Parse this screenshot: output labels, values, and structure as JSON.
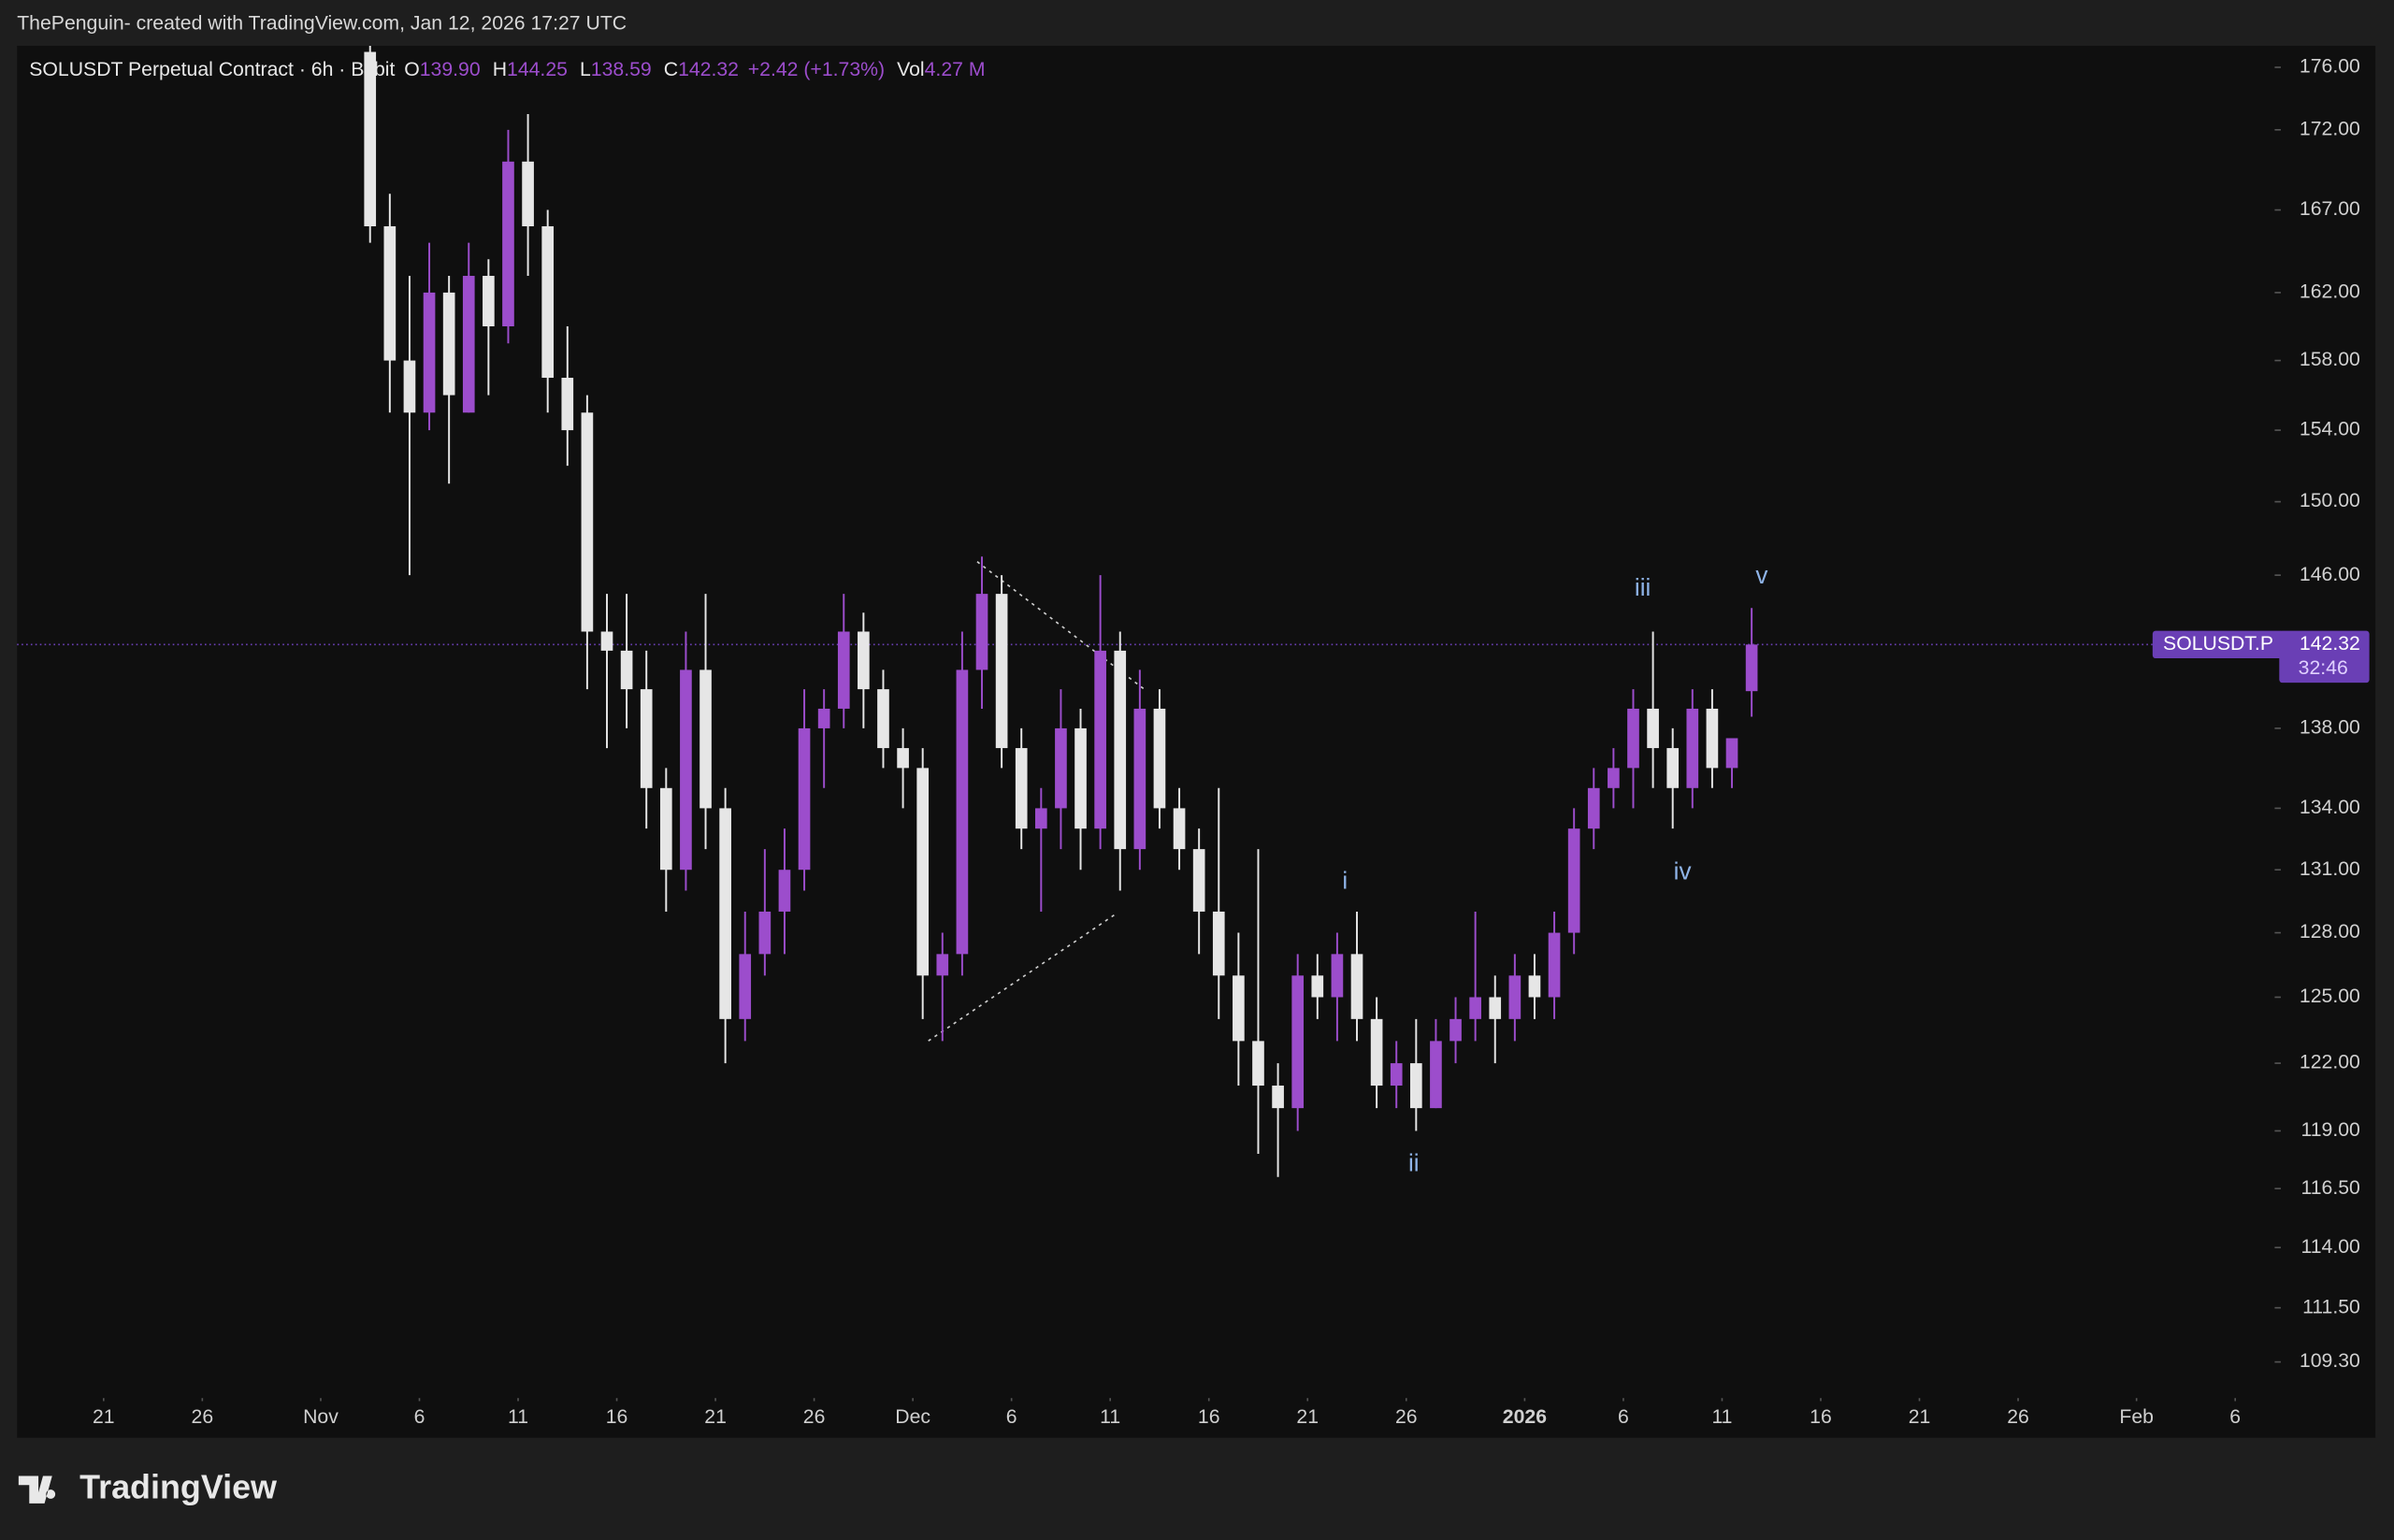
{
  "header": {
    "credit": "ThePenguin- created with TradingView.com, Jan 12, 2026 17:27 UTC",
    "brand": "TradingView"
  },
  "chart_data": {
    "type": "candlestick",
    "title": "SOLUSDT Perpetual Contract · 6h · Bybit",
    "legend": {
      "o": "O",
      "open": "139.90",
      "h": "H",
      "high": "144.25",
      "l": "L",
      "low": "138.59",
      "c": "C",
      "close": "142.32",
      "change": "+2.42 (+1.73%)",
      "vol": "Vol",
      "volume": "4.27 M"
    },
    "log_scale": true,
    "up_color": "#9c4dcc",
    "down_color": "#e6e6e6",
    "x": [
      "Nov 3",
      "Nov 4",
      "Nov 5",
      "Nov 6",
      "Nov 7",
      "Nov 8",
      "Nov 9",
      "Nov 10",
      "Nov 11",
      "Nov 12",
      "Nov 13",
      "Nov 14",
      "Nov 15",
      "Nov 16",
      "Nov 17",
      "Nov 18",
      "Nov 19",
      "Nov 20",
      "Nov 21",
      "Nov 22",
      "Nov 23",
      "Nov 24",
      "Nov 25",
      "Nov 26",
      "Nov 27",
      "Nov 28",
      "Nov 29",
      "Nov 30",
      "Dec 1",
      "Dec 2",
      "Dec 3",
      "Dec 4",
      "Dec 5",
      "Dec 6",
      "Dec 7",
      "Dec 8",
      "Dec 9",
      "Dec 10",
      "Dec 11",
      "Dec 12",
      "Dec 13",
      "Dec 14",
      "Dec 15",
      "Dec 16",
      "Dec 17",
      "Dec 18",
      "Dec 19",
      "Dec 20",
      "Dec 21",
      "Dec 22",
      "Dec 23",
      "Dec 24",
      "Dec 25",
      "Dec 26",
      "Dec 27",
      "Dec 28",
      "Dec 29",
      "Dec 30",
      "Dec 31",
      "Jan 1",
      "Jan 2",
      "Jan 3",
      "Jan 4",
      "Jan 5",
      "Jan 6",
      "Jan 7",
      "Jan 8",
      "Jan 9",
      "Jan 10",
      "Jan 11",
      "Jan 12"
    ],
    "open": [
      177,
      166,
      158,
      155,
      162,
      155,
      163,
      160,
      170,
      166,
      157,
      155,
      143,
      142,
      140,
      135,
      131,
      141,
      134,
      124,
      127,
      129,
      131,
      138,
      139,
      143,
      140,
      137,
      136,
      126,
      127,
      141,
      145,
      137,
      133,
      134,
      138,
      133,
      142,
      132,
      139,
      134,
      132,
      129,
      126,
      123,
      121,
      120,
      126,
      125,
      127,
      124,
      121,
      122,
      120,
      123,
      124,
      125,
      124,
      126,
      125,
      128,
      133,
      135,
      136,
      139,
      137,
      135,
      139,
      136,
      139.9
    ],
    "high": [
      177.4,
      168,
      163,
      165,
      163,
      165,
      164,
      172,
      173,
      167,
      160,
      156,
      145,
      145,
      142,
      136,
      143,
      145,
      135,
      129,
      132,
      133,
      140,
      140,
      145,
      144,
      141,
      138,
      137,
      128,
      143,
      147,
      146,
      138,
      135,
      140,
      139,
      146,
      143,
      141,
      140,
      135,
      133,
      135,
      128,
      132,
      122,
      127,
      127,
      128,
      129,
      125,
      123,
      124,
      124,
      125,
      129,
      126,
      127,
      127,
      129,
      134,
      136,
      137,
      140,
      143,
      138,
      140,
      140,
      137,
      144.25
    ],
    "low": [
      165,
      155,
      146,
      154,
      151,
      155,
      156,
      159,
      163,
      155,
      152,
      140,
      137,
      138,
      133,
      129,
      130,
      132,
      122,
      123,
      126,
      127,
      130,
      135,
      138,
      138,
      136,
      134,
      124,
      123,
      126,
      139,
      136,
      132,
      129,
      132,
      131,
      132,
      130,
      131,
      133,
      131,
      127,
      124,
      121,
      118,
      117,
      119,
      124,
      123,
      123,
      120,
      120,
      119,
      120,
      122,
      123,
      122,
      123,
      124,
      124,
      127,
      132,
      134,
      134,
      135,
      133,
      134,
      135,
      135,
      138.59
    ],
    "close": [
      166,
      158,
      155,
      162,
      156,
      163,
      160,
      170,
      166,
      157,
      154,
      143,
      142,
      140,
      135,
      131,
      141,
      134,
      124,
      127,
      129,
      131,
      138,
      139,
      143,
      140,
      137,
      136,
      126,
      127,
      141,
      145,
      137,
      133,
      134,
      138,
      133,
      142,
      132,
      139,
      134,
      132,
      129,
      126,
      123,
      121,
      120,
      126,
      125,
      127,
      124,
      121,
      122,
      120,
      123,
      124,
      125,
      124,
      126,
      125,
      128,
      133,
      135,
      136,
      139,
      137,
      135,
      139,
      136,
      137.5,
      142.32
    ],
    "xlim": [
      "Oct 17",
      "Feb 8"
    ],
    "xticks": [
      {
        "value": "Oct 21",
        "label": "21"
      },
      {
        "value": "Oct 26",
        "label": "26"
      },
      {
        "value": "Nov 1",
        "label": "Nov"
      },
      {
        "value": "Nov 6",
        "label": "6"
      },
      {
        "value": "Nov 11",
        "label": "11"
      },
      {
        "value": "Nov 16",
        "label": "16"
      },
      {
        "value": "Nov 21",
        "label": "21"
      },
      {
        "value": "Nov 26",
        "label": "26"
      },
      {
        "value": "Dec 1",
        "label": "Dec"
      },
      {
        "value": "Dec 6",
        "label": "6"
      },
      {
        "value": "Dec 11",
        "label": "11"
      },
      {
        "value": "Dec 16",
        "label": "16"
      },
      {
        "value": "Dec 21",
        "label": "21"
      },
      {
        "value": "Dec 26",
        "label": "26"
      },
      {
        "value": "Jan 1",
        "label": "2026"
      },
      {
        "value": "Jan 6",
        "label": "6"
      },
      {
        "value": "Jan 11",
        "label": "11"
      },
      {
        "value": "Jan 16",
        "label": "16"
      },
      {
        "value": "Jan 21",
        "label": "21"
      },
      {
        "value": "Jan 26",
        "label": "26"
      },
      {
        "value": "Feb 1",
        "label": "Feb"
      },
      {
        "value": "Feb 6",
        "label": "6"
      }
    ],
    "ylim": [
      108.1,
      177.4
    ],
    "yticks": [
      {
        "value": 176,
        "label": "176.00"
      },
      {
        "value": 172,
        "label": "172.00"
      },
      {
        "value": 167,
        "label": "167.00"
      },
      {
        "value": 162,
        "label": "162.00"
      },
      {
        "value": 158,
        "label": "158.00"
      },
      {
        "value": 154,
        "label": "154.00"
      },
      {
        "value": 150,
        "label": "150.00"
      },
      {
        "value": 146,
        "label": "146.00"
      },
      {
        "value": 138,
        "label": "138.00"
      },
      {
        "value": 134,
        "label": "134.00"
      },
      {
        "value": 131,
        "label": "131.00"
      },
      {
        "value": 128,
        "label": "128.00"
      },
      {
        "value": 125,
        "label": "125.00"
      },
      {
        "value": 122,
        "label": "122.00"
      },
      {
        "value": 119,
        "label": "119.00"
      },
      {
        "value": 116.5,
        "label": "116.50"
      },
      {
        "value": 114,
        "label": "114.00"
      },
      {
        "value": 111.5,
        "label": "111.50"
      },
      {
        "value": 109.3,
        "label": "109.30"
      }
    ],
    "last_price": {
      "value": 142.32,
      "label": "142.32",
      "symbol": "SOLUSDT.P",
      "countdown": "32:46"
    },
    "wave_labels": [
      "i",
      "ii",
      "iii",
      "iv",
      "v"
    ]
  }
}
